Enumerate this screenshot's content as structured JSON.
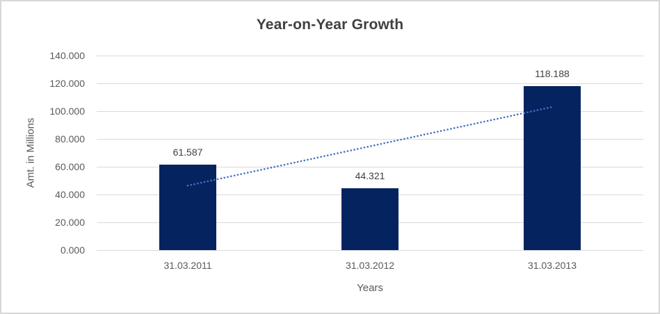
{
  "frame": {
    "background_color": "#ffffff",
    "border_color": "#d7d7d7"
  },
  "chart_data": {
    "type": "bar",
    "title": "Year-on-Year Growth",
    "xlabel": "Years",
    "ylabel": "Amt. in Millions",
    "categories": [
      "31.03.2011",
      "31.03.2012",
      "31.03.2013"
    ],
    "values": [
      61.587,
      44.321,
      118.188
    ],
    "data_labels": [
      "61.587",
      "44.321",
      "118.188"
    ],
    "ylim": [
      0,
      140
    ],
    "ytick_step": 20,
    "ytick_labels": [
      "0.000",
      "20.000",
      "40.000",
      "60.000",
      "80.000",
      "100.000",
      "120.000",
      "140.000"
    ],
    "grid": true,
    "legend": "none",
    "colors": {
      "bar": "#05235F",
      "gridline": "#d9d9d9",
      "axis_text": "#595959",
      "title_text": "#404040",
      "data_label_text": "#404040"
    },
    "trendline": {
      "type": "linear",
      "style": "dotted",
      "color": "#4472C4",
      "start_value": 46.4,
      "end_value": 103.0
    }
  }
}
